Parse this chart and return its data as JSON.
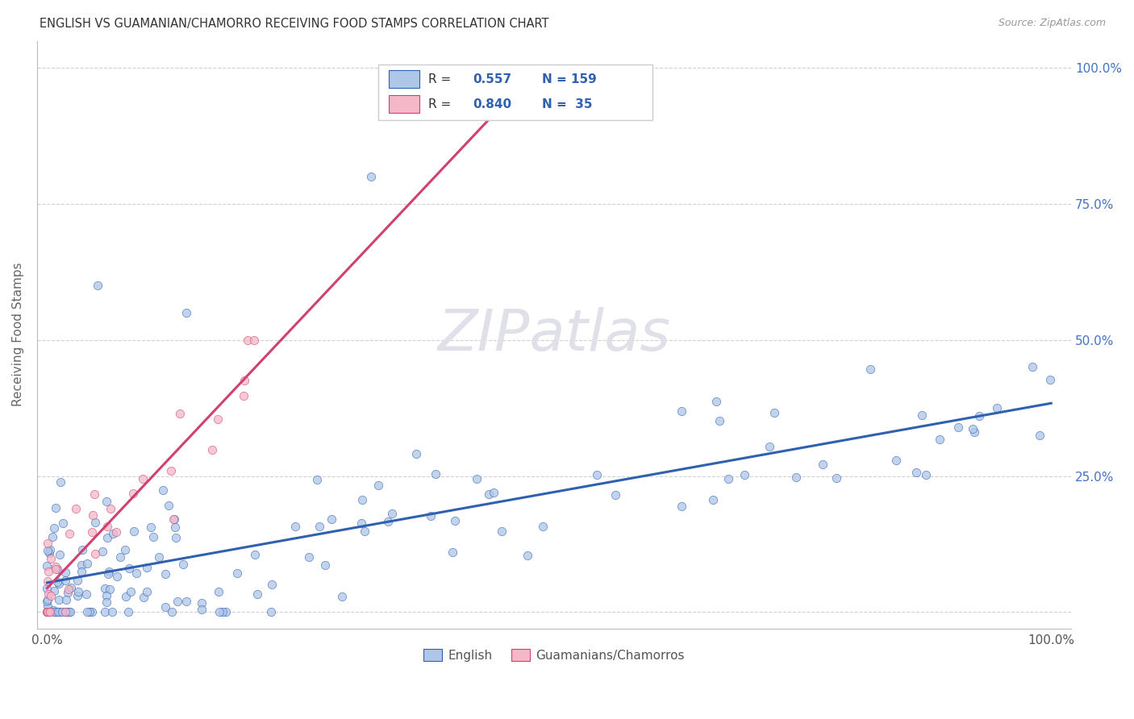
{
  "title": "ENGLISH VS GUAMANIAN/CHAMORRO RECEIVING FOOD STAMPS CORRELATION CHART",
  "source": "Source: ZipAtlas.com",
  "ylabel": "Receiving Food Stamps",
  "legend_english": "English",
  "legend_guam": "Guamanians/Chamorros",
  "english_R": 0.557,
  "english_N": 159,
  "guam_R": 0.84,
  "guam_N": 35,
  "english_color": "#aec6e8",
  "guam_color": "#f4b8c8",
  "english_line_color": "#3060b0",
  "guam_line_color": "#d04070",
  "watermark_color": "#e0e0e8"
}
